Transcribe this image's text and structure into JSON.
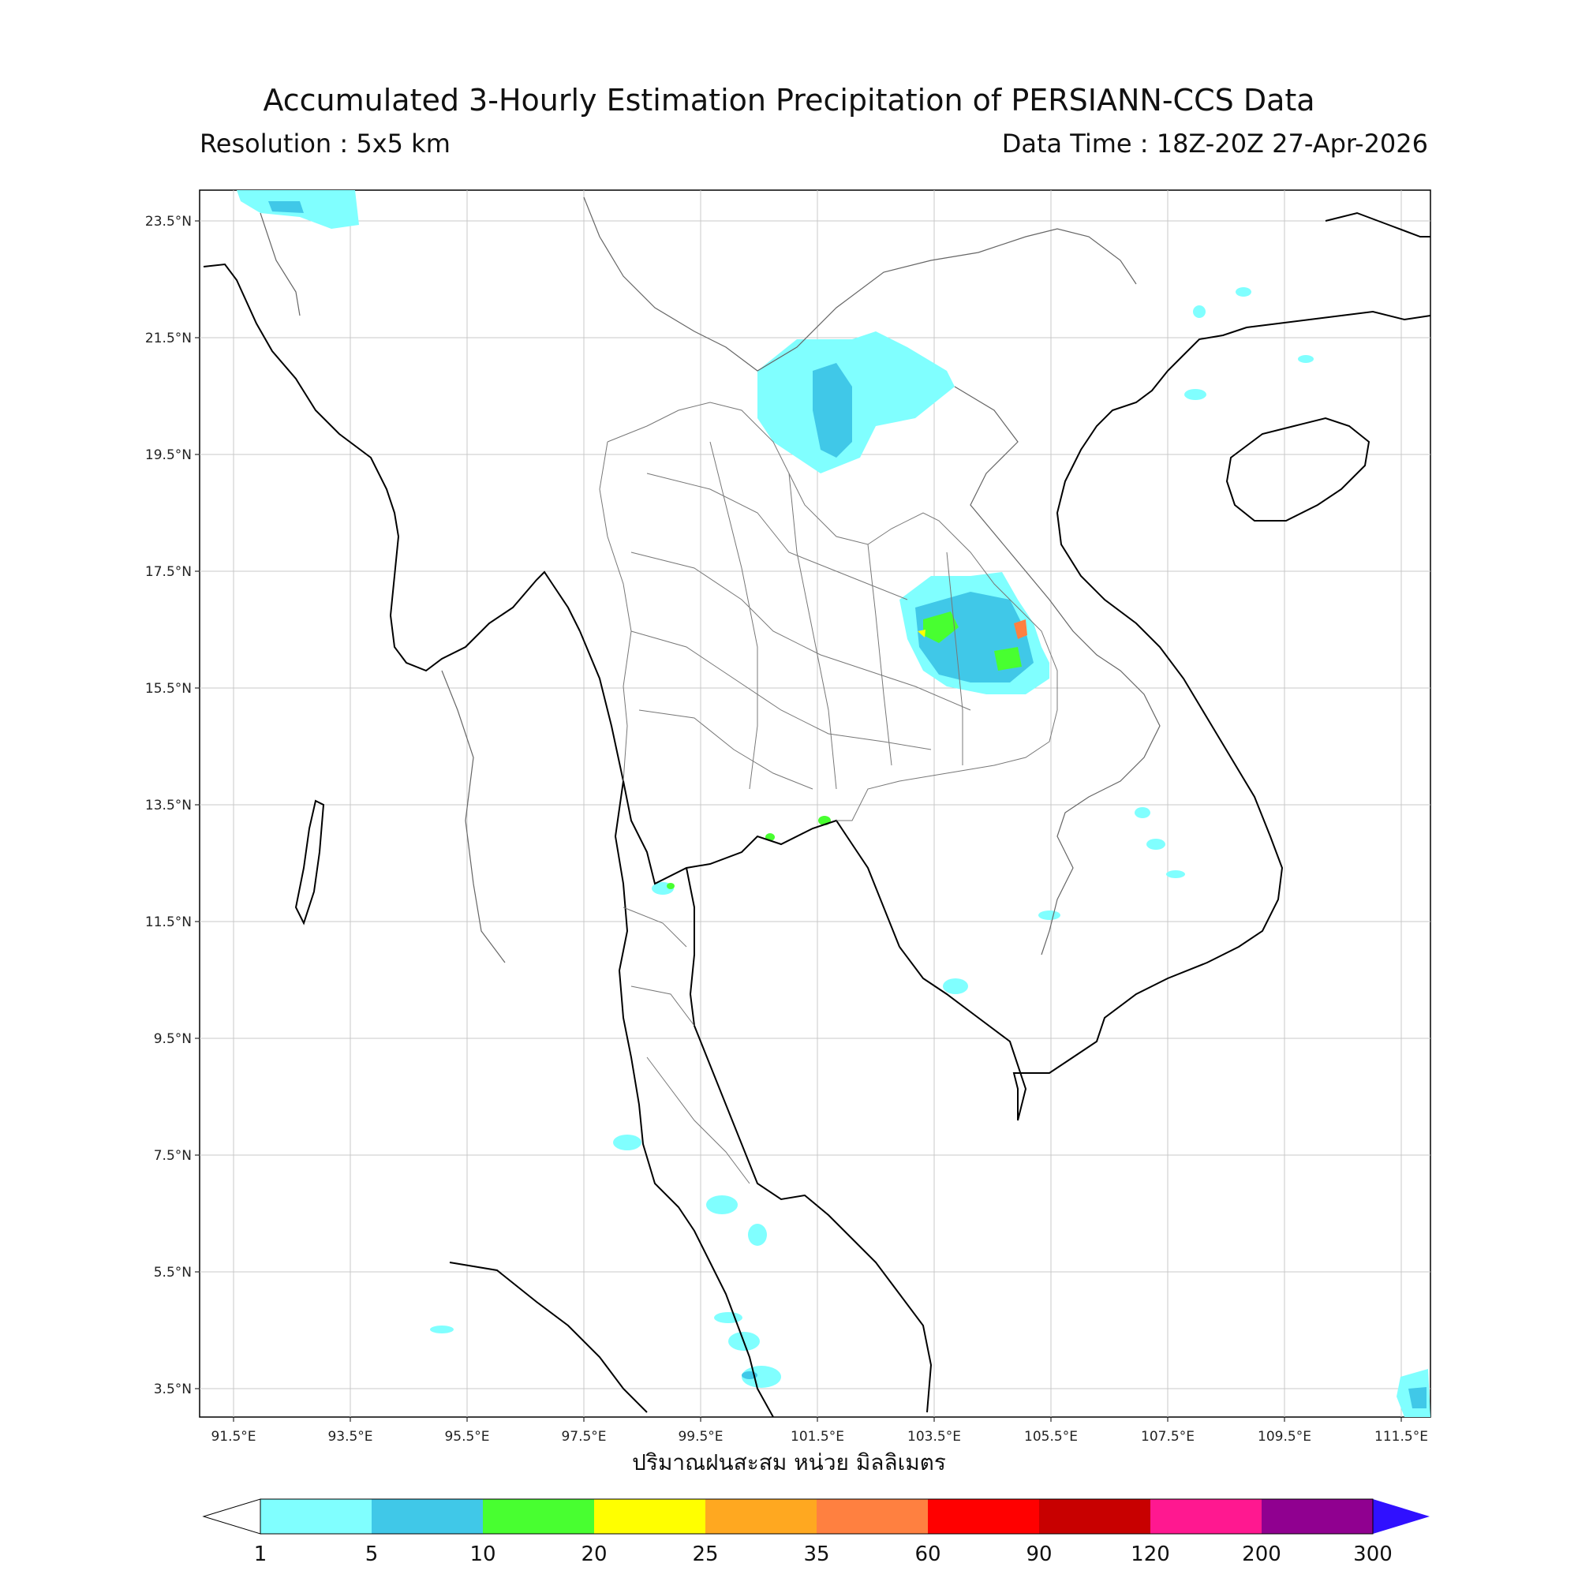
{
  "title": "Accumulated 3-Hourly Estimation Precipitation of PERSIANN-CCS Data",
  "resolution": "Resolution : 5x5 km",
  "data_time": "Data Time : 18Z-20Z 27-Apr-2026",
  "xaxis_caption": "ปริมาณฝนสะสม หน่วย มิลลิเมตร",
  "lon_ticks": [
    "91.5°E",
    "93.5°E",
    "95.5°E",
    "97.5°E",
    "99.5°E",
    "101.5°E",
    "103.5°E",
    "105.5°E",
    "107.5°E",
    "109.5°E",
    "111.5°E"
  ],
  "lat_ticks": [
    "23.5°N",
    "21.5°N",
    "19.5°N",
    "17.5°N",
    "15.5°N",
    "13.5°N",
    "11.5°N",
    "9.5°N",
    "7.5°N",
    "5.5°N",
    "3.5°N"
  ],
  "colorbar": {
    "ticks": [
      "1",
      "5",
      "10",
      "20",
      "25",
      "35",
      "60",
      "90",
      "120",
      "200",
      "300"
    ],
    "colors": [
      "#80ffff",
      "#40c8e8",
      "#48ff30",
      "#ffff00",
      "#ffa820",
      "#ff8040",
      "#ff0000",
      "#c80000",
      "#ff1890",
      "#900090"
    ],
    "under_color": "#ffffff",
    "over_color": "#3010ff"
  }
}
